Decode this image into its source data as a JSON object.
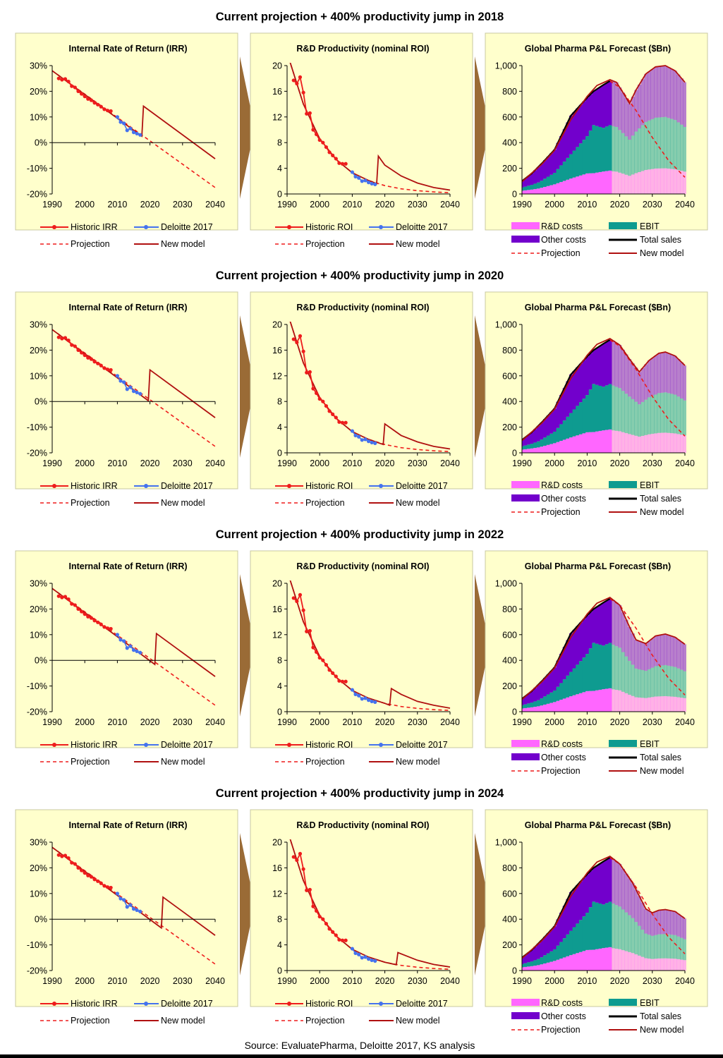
{
  "figure": {
    "source": "Source: EvaluatePharma, Deloitte 2017, KS analysis",
    "colors": {
      "panel_bg": "#ffffcc",
      "historic": "#ee1c1c",
      "deloitte": "#4472ee",
      "projection": "#ee1c1c",
      "new_model": "#b01010",
      "rd_costs": "#ff66ff",
      "ebit": "#0e9b90",
      "other_costs": "#7200cc",
      "total_sales": "#000000",
      "arrow": "#9a6b36"
    }
  },
  "rows": [
    {
      "title": "Current projection + 400% productivity jump in 2018",
      "jump_year": 2018
    },
    {
      "title": "Current projection + 400% productivity jump in 2020",
      "jump_year": 2020
    },
    {
      "title": "Current projection + 400% productivity jump in 2022",
      "jump_year": 2022
    },
    {
      "title": "Current projection + 400% productivity jump in 2024",
      "jump_year": 2024
    }
  ],
  "chart_data": [
    {
      "type": "line",
      "title": "Internal Rate of Return (IRR)",
      "x_ticks": [
        "1990",
        "2000",
        "2010",
        "2020",
        "2030",
        "2040"
      ],
      "y_ticks": [
        "30%",
        "20%",
        "10%",
        "0%",
        "-10%",
        "-20%"
      ],
      "xlim": [
        1990,
        2040
      ],
      "ylim": [
        -20,
        30
      ],
      "y_unit": "%",
      "legend": [
        "Historic IRR",
        "Deloitte 2017",
        "Projection",
        "New model"
      ],
      "series": [
        {
          "name": "Historic IRR",
          "style": "line+markers",
          "x": [
            1992,
            1993,
            1994,
            1995,
            1996,
            1997,
            1998,
            1999,
            2000,
            2001,
            2002,
            2003,
            2004,
            2005,
            2006,
            2007,
            2008
          ],
          "y": [
            25,
            24.5,
            24.8,
            23.8,
            22,
            21.5,
            20,
            19,
            18,
            17,
            16.5,
            15.5,
            14.8,
            14,
            13,
            12.5,
            12.3
          ]
        },
        {
          "name": "Deloitte 2017",
          "style": "line+markers",
          "x": [
            2010,
            2011,
            2012,
            2013,
            2014,
            2015,
            2016,
            2017
          ],
          "y": [
            10,
            8,
            7.5,
            4.8,
            5.5,
            4,
            3.5,
            3
          ]
        },
        {
          "name": "Projection",
          "style": "dashed",
          "x": [
            1990,
            2040
          ],
          "y": [
            28,
            -17.5
          ]
        },
        {
          "name": "New model",
          "style": "solid",
          "rows": [
            {
              "jump_year": 2018,
              "x": [
                1990,
                2017.5,
                2018,
                2040
              ],
              "y": [
                28,
                2.5,
                14.2,
                -6.3
              ]
            },
            {
              "jump_year": 2020,
              "x": [
                1990,
                2019.5,
                2020,
                2040
              ],
              "y": [
                28,
                0.3,
                12.3,
                -6.3
              ]
            },
            {
              "jump_year": 2022,
              "x": [
                1990,
                2021.5,
                2022,
                2040
              ],
              "y": [
                28,
                -1.6,
                10.4,
                -6.3
              ]
            },
            {
              "jump_year": 2024,
              "x": [
                1990,
                2023.5,
                2024,
                2040
              ],
              "y": [
                28,
                -3.4,
                8.6,
                -6.3
              ]
            }
          ]
        }
      ]
    },
    {
      "type": "line",
      "title": "R&D Productivity (nominal ROI)",
      "x_ticks": [
        "1990",
        "2000",
        "2010",
        "2020",
        "2030",
        "2040"
      ],
      "y_ticks": [
        "20",
        "16",
        "12",
        "8",
        "4",
        "0"
      ],
      "xlim": [
        1990,
        2040
      ],
      "ylim": [
        0,
        20
      ],
      "legend": [
        "Historic ROI",
        "Deloitte 2017",
        "Projection",
        "New model"
      ],
      "series": [
        {
          "name": "Historic ROI",
          "style": "line+markers",
          "x": [
            1992,
            1993,
            1994,
            1995,
            1996,
            1997,
            1998,
            1999,
            2000,
            2001,
            2002,
            2003,
            2004,
            2005,
            2006,
            2007,
            2008
          ],
          "y": [
            17.7,
            17.2,
            18.2,
            15.8,
            12.5,
            12.6,
            10,
            9.3,
            8.4,
            8,
            7.3,
            6.5,
            6,
            5.5,
            4.8,
            4.7,
            4.7
          ]
        },
        {
          "name": "Deloitte 2017",
          "style": "line+markers",
          "x": [
            2010,
            2011,
            2012,
            2013,
            2014,
            2015,
            2016,
            2017
          ],
          "y": [
            3.4,
            2.7,
            2.5,
            2,
            2.1,
            1.8,
            1.6,
            1.5
          ]
        },
        {
          "name": "Projection",
          "style": "dashed",
          "x": [
            1990,
            1995,
            2000,
            2005,
            2010,
            2015,
            2020,
            2025,
            2030,
            2035,
            2040
          ],
          "y": [
            22,
            14,
            8.6,
            5.4,
            3.3,
            2.1,
            1.3,
            0.8,
            0.52,
            0.32,
            0.2
          ]
        },
        {
          "name": "New model",
          "style": "solid",
          "rows": [
            {
              "jump_year": 2018,
              "x": [
                1990,
                1995,
                2000,
                2005,
                2010,
                2015,
                2017.5,
                2018,
                2020,
                2025,
                2030,
                2035,
                2040
              ],
              "y": [
                22,
                14,
                8.6,
                5.4,
                3.3,
                2.1,
                1.6,
                5.9,
                4.5,
                2.8,
                1.7,
                1.0,
                0.6
              ]
            },
            {
              "jump_year": 2020,
              "x": [
                1990,
                1995,
                2000,
                2005,
                2010,
                2015,
                2019.5,
                2020,
                2025,
                2030,
                2035,
                2040
              ],
              "y": [
                22,
                14,
                8.6,
                5.4,
                3.3,
                2.1,
                1.3,
                4.5,
                2.7,
                1.7,
                1.0,
                0.6
              ]
            },
            {
              "jump_year": 2022,
              "x": [
                1990,
                1995,
                2000,
                2005,
                2010,
                2015,
                2020,
                2021.5,
                2022,
                2025,
                2030,
                2035,
                2040
              ],
              "y": [
                22,
                14,
                8.6,
                5.4,
                3.3,
                2.1,
                1.3,
                1.0,
                3.6,
                2.7,
                1.6,
                1.0,
                0.55
              ]
            },
            {
              "jump_year": 2024,
              "x": [
                1990,
                1995,
                2000,
                2005,
                2010,
                2015,
                2020,
                2023.5,
                2024,
                2030,
                2035,
                2040
              ],
              "y": [
                22,
                14,
                8.6,
                5.4,
                3.3,
                2.1,
                1.3,
                0.9,
                2.8,
                1.6,
                0.95,
                0.55
              ]
            }
          ]
        }
      ]
    },
    {
      "type": "area",
      "title": "Global Pharma P&L Forecast ($Bn)",
      "x_ticks": [
        "1990",
        "2000",
        "2010",
        "2020",
        "2030",
        "2040"
      ],
      "y_ticks": [
        "1,000",
        "800",
        "600",
        "400",
        "200",
        "0"
      ],
      "xlim": [
        1990,
        2040
      ],
      "ylim": [
        0,
        1000
      ],
      "legend": [
        "R&D costs",
        "EBIT",
        "Other costs",
        "Total sales",
        "Projection",
        "New model"
      ],
      "historic_end_year": 2017,
      "x": [
        1990,
        1995,
        2000,
        2005,
        2010,
        2012,
        2015,
        2017
      ],
      "stacks": [
        {
          "name": "R&D costs",
          "values": [
            25,
            40,
            75,
            120,
            160,
            160,
            175,
            180
          ]
        },
        {
          "name": "EBIT",
          "values": [
            25,
            45,
            90,
            190,
            290,
            370,
            340,
            350
          ]
        },
        {
          "name": "Other costs",
          "values": [
            50,
            115,
            180,
            300,
            300,
            260,
            335,
            340
          ]
        }
      ],
      "total_sales": {
        "x": [
          1990,
          1993,
          1996,
          2000,
          2005,
          2010,
          2012,
          2015,
          2017
        ],
        "y": [
          100,
          160,
          235,
          345,
          610,
          750,
          800,
          850,
          880
        ]
      },
      "projection": {
        "x": [
          2017,
          2020,
          2025,
          2030,
          2035,
          2040
        ],
        "y": [
          880,
          830,
          650,
          440,
          260,
          130
        ]
      },
      "new_model": [
        {
          "jump_year": 2018,
          "x": [
            1990,
            1996,
            2000,
            2005,
            2010,
            2013,
            2017,
            2019,
            2021,
            2023,
            2025,
            2028,
            2031,
            2034,
            2037,
            2040
          ],
          "y": [
            95,
            230,
            340,
            580,
            760,
            845,
            890,
            870,
            790,
            705,
            810,
            935,
            990,
            1000,
            960,
            870
          ]
        },
        {
          "jump_year": 2020,
          "x": [
            1990,
            1996,
            2000,
            2005,
            2010,
            2013,
            2017,
            2020,
            2023,
            2026,
            2029,
            2032,
            2034,
            2037,
            2040
          ],
          "y": [
            95,
            230,
            340,
            580,
            760,
            845,
            890,
            840,
            730,
            630,
            720,
            775,
            785,
            755,
            680
          ]
        },
        {
          "jump_year": 2022,
          "x": [
            1990,
            1996,
            2000,
            2005,
            2010,
            2013,
            2017,
            2020,
            2023,
            2025,
            2028,
            2031,
            2034,
            2037,
            2040
          ],
          "y": [
            95,
            230,
            340,
            580,
            760,
            845,
            890,
            830,
            660,
            560,
            530,
            590,
            605,
            580,
            525
          ]
        },
        {
          "jump_year": 2024,
          "x": [
            1990,
            1996,
            2000,
            2005,
            2010,
            2013,
            2017,
            2020,
            2024,
            2028,
            2030,
            2032,
            2034,
            2037,
            2040
          ],
          "y": [
            95,
            230,
            340,
            580,
            760,
            845,
            890,
            830,
            680,
            480,
            450,
            470,
            475,
            460,
            405
          ]
        }
      ],
      "forecast_ratios": {
        "rd": 0.2,
        "ebit": 0.4
      }
    }
  ]
}
